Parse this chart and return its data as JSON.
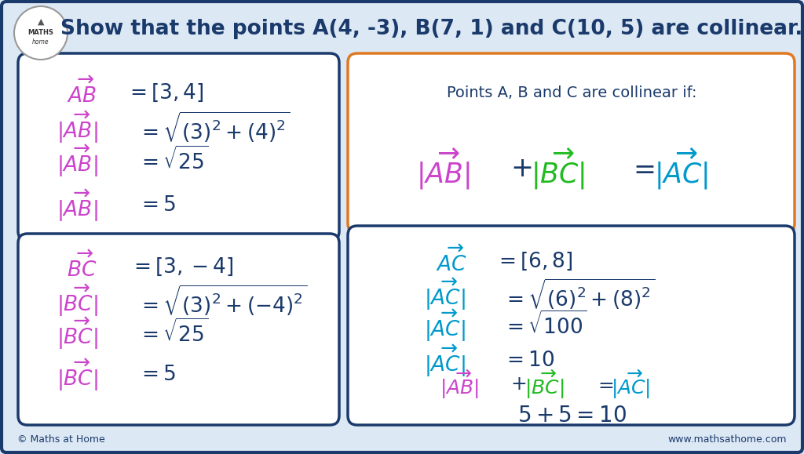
{
  "title": "Show that the points A(4, -3), B(7, 1) and C(10, 5) are collinear.",
  "bg_color": "#dde8f5",
  "box_border_color": "#1a3a6b",
  "orange_border_color": "#e07820",
  "dark_blue": "#1a3a6b",
  "magenta": "#cc44cc",
  "green": "#22bb22",
  "cyan": "#0099cc",
  "footer_left": "© Maths at Home",
  "footer_right": "www.mathsathome.com"
}
